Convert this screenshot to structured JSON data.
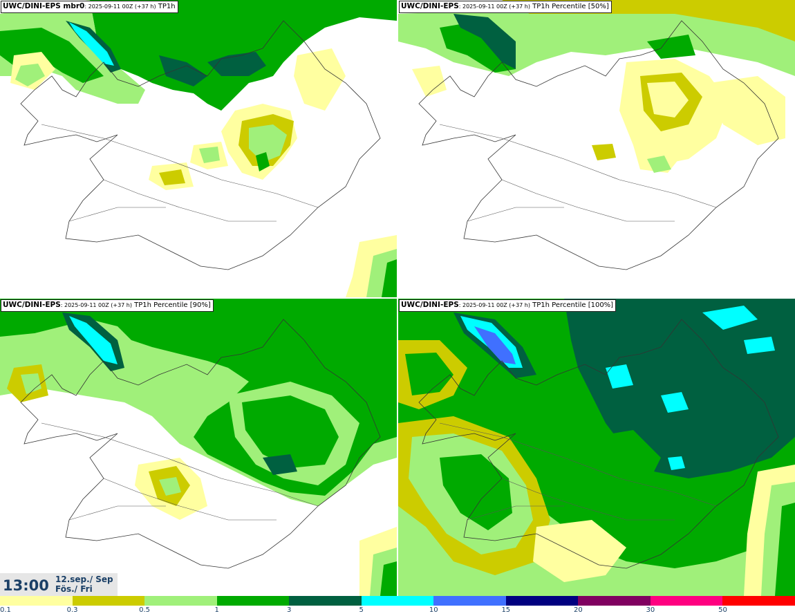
{
  "panels": [
    {
      "model": "UWC/DINI-EPS",
      "meta": ": 2025-09-11 00Z (+37 h)",
      "param": " mbr0",
      "suffix": " TP1h"
    },
    {
      "model": "UWC/DINI-EPS",
      "meta": ": 2025-09-11 00Z (+37 h)",
      "param": "",
      "suffix": " TP1h Percentile [50%]"
    },
    {
      "model": "UWC/DINI-EPS",
      "meta": ": 2025-09-11 00Z (+37 h)",
      "param": "",
      "suffix": " TP1h Percentile [90%]"
    },
    {
      "model": "UWC/DINI-EPS",
      "meta": ": 2025-09-11 00Z (+37 h)",
      "param": "",
      "suffix": " TP1h Percentile [100%]"
    }
  ],
  "valid_time": {
    "time": "13:00",
    "date_line1": "12.sep./ Sep",
    "date_line2": "Fös./ Fri"
  },
  "colorbar": {
    "colors": [
      "#ffffa0",
      "#cccc00",
      "#a0f07a",
      "#00aa00",
      "#006040",
      "#00ffff",
      "#4070ff",
      "#000080",
      "#800060",
      "#ff0080",
      "#ff0000"
    ],
    "ticks": [
      "0.1",
      "0.3",
      "0.5",
      "1",
      "3",
      "5",
      "10",
      "15",
      "20",
      "30",
      "50"
    ]
  }
}
